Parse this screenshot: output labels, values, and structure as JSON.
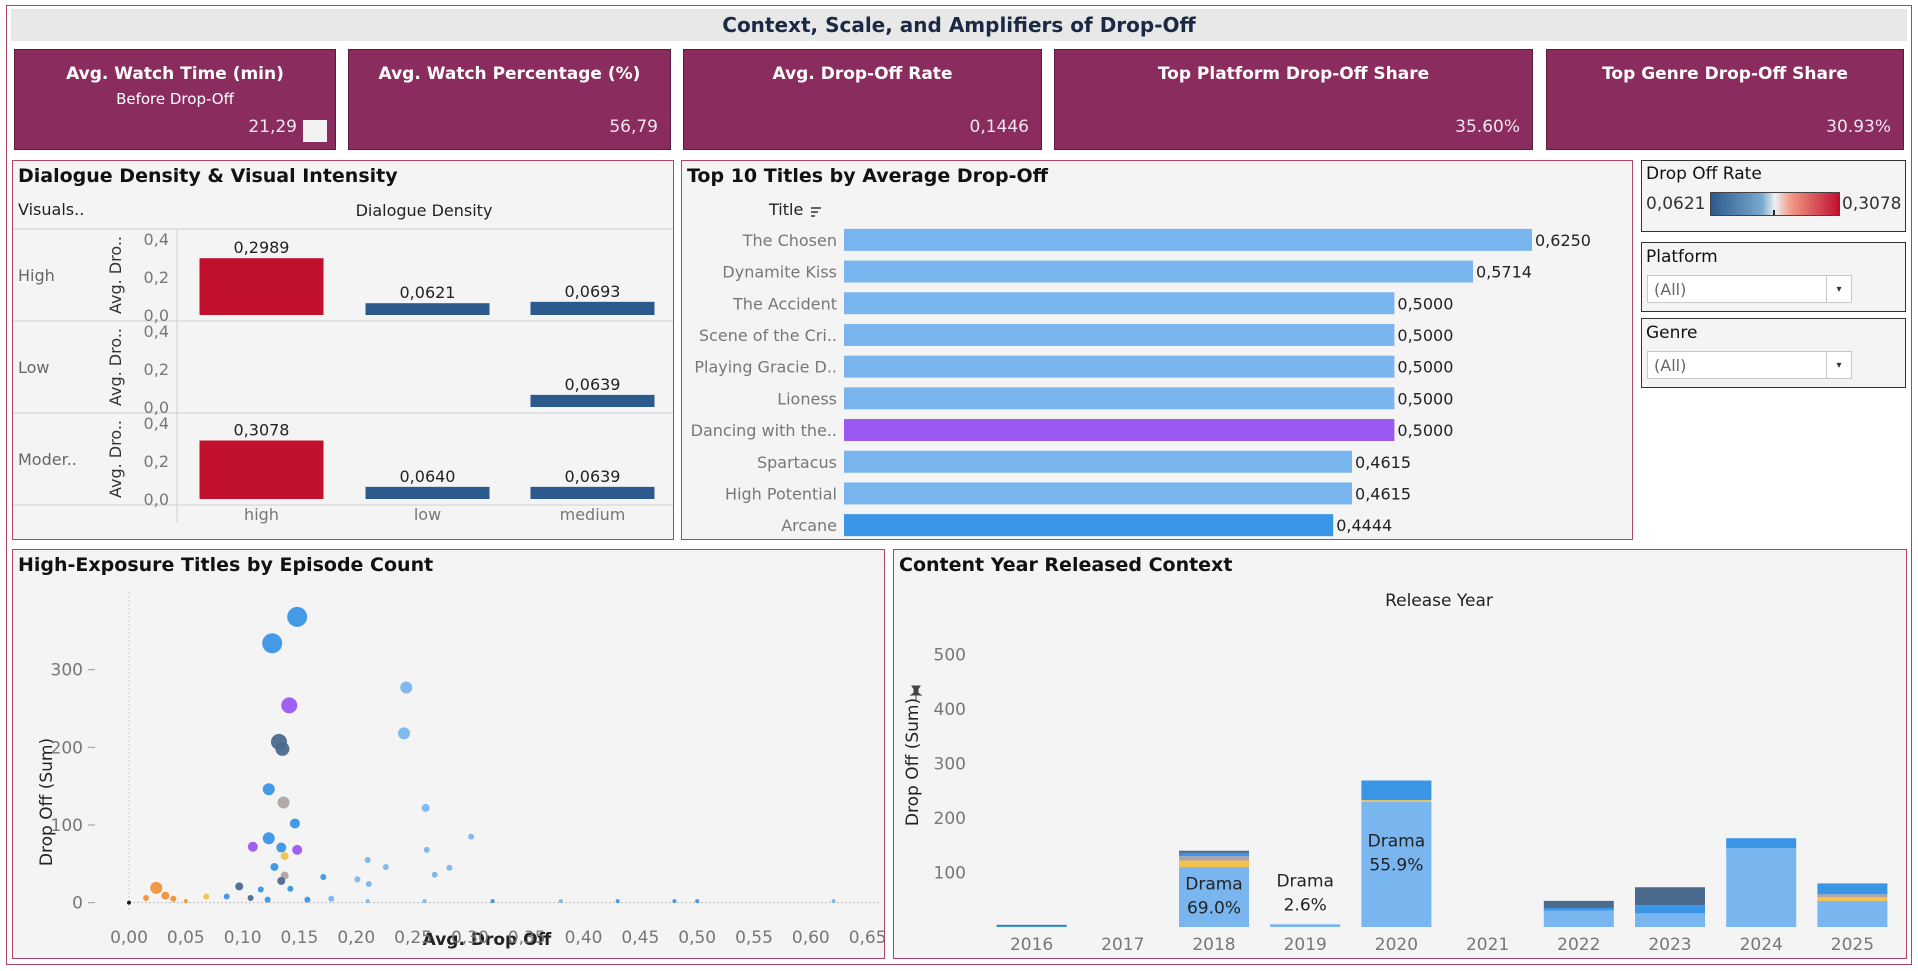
{
  "dashboard": {
    "title": "Context, Scale, and Amplifiers of Drop-Off"
  },
  "kpis": [
    {
      "title": "Avg. Watch Time (min)",
      "subtitle": "Before Drop-Off",
      "value": "21,29"
    },
    {
      "title": "Avg. Watch Percentage  (%)",
      "subtitle": "",
      "value": "56,79"
    },
    {
      "title": "Avg. Drop-Off Rate",
      "subtitle": "",
      "value": "0,1446"
    },
    {
      "title": "Top Platform Drop-Off Share",
      "subtitle": "",
      "value": "35.60%"
    },
    {
      "title": "Top Genre Drop-Off Share",
      "subtitle": "",
      "value": "30.93%"
    }
  ],
  "filters": {
    "color_legend": {
      "title": "Drop Off Rate",
      "min": "0,0621",
      "max": "0,3078",
      "color_low": "#2c5a8c",
      "color_high": "#c0102e"
    },
    "platform": {
      "label": "Platform",
      "value": "(All)"
    },
    "genre": {
      "label": "Genre",
      "value": "(All)"
    }
  },
  "colors": {
    "kpi_bg": "#8b2c5f",
    "border": "#b0436a",
    "bar_light": "#79b6f0",
    "bar_mid": "#3a95e6",
    "highlight": "#9b59f0",
    "hot": "#c0102e",
    "cold": "#2c5a8c"
  },
  "chart_data": [
    {
      "type": "bar",
      "title": "Dialogue Density & Visual Intensity",
      "row_header": "Visuals..",
      "column_header": "Dialogue Density",
      "ylabel": "Avg. Dro..",
      "ylim": [
        0,
        0.4
      ],
      "yticks": [
        "0,4",
        "0,2",
        "0,0"
      ],
      "categories": [
        "high",
        "low",
        "medium"
      ],
      "rows": [
        {
          "name": "High",
          "values": [
            0.2989,
            0.0621,
            0.0693
          ],
          "labels": [
            "0,2989",
            "0,0621",
            "0,0693"
          ]
        },
        {
          "name": "Low",
          "values": [
            null,
            null,
            0.0639
          ],
          "labels": [
            "",
            "",
            "0,0639"
          ]
        },
        {
          "name": "Moder..",
          "values": [
            0.3078,
            0.064,
            0.0639
          ],
          "labels": [
            "0,3078",
            "0,0640",
            "0,0639"
          ]
        }
      ]
    },
    {
      "type": "bar",
      "orientation": "horizontal",
      "title": "Top 10 Titles by Average Drop-Off",
      "column_header": "Title",
      "categories": [
        "The Chosen",
        "Dynamite Kiss",
        "The Accident",
        "Scene of the Cri..",
        "Playing Gracie D..",
        "Lioness",
        "Dancing with the..",
        "Spartacus",
        "High Potential",
        "Arcane"
      ],
      "values": [
        0.625,
        0.5714,
        0.5,
        0.5,
        0.5,
        0.5,
        0.5,
        0.4615,
        0.4615,
        0.4444
      ],
      "labels": [
        "0,6250",
        "0,5714",
        "0,5000",
        "0,5000",
        "0,5000",
        "0,5000",
        "0,5000",
        "0,4615",
        "0,4615",
        "0,4444"
      ],
      "colors": [
        "#79b6f0",
        "#79b6f0",
        "#79b6f0",
        "#79b6f0",
        "#79b6f0",
        "#79b6f0",
        "#9b59f0",
        "#79b6f0",
        "#79b6f0",
        "#3a95e6"
      ],
      "xlim": [
        0,
        0.7
      ]
    },
    {
      "type": "scatter",
      "title": "High-Exposure Titles by Episode Count",
      "xlabel": "Avg. Drop Off",
      "ylabel": "Drop Off (Sum)",
      "xlim": [
        0,
        0.66
      ],
      "ylim": [
        -12,
        400
      ],
      "xticks": [
        "0,00",
        "0,05",
        "0,10",
        "0,15",
        "0,20",
        "0,25",
        "0,30",
        "0,35",
        "0,40",
        "0,45",
        "0,50",
        "0,55",
        "0,60",
        "0,65"
      ],
      "yticks": [
        0,
        100,
        200,
        300
      ],
      "points": [
        {
          "x": 0.148,
          "y": 368,
          "r": 10,
          "color": "#3a95e6"
        },
        {
          "x": 0.126,
          "y": 334,
          "r": 10,
          "color": "#3a95e6"
        },
        {
          "x": 0.244,
          "y": 277,
          "r": 6,
          "color": "#79b6f0"
        },
        {
          "x": 0.141,
          "y": 254,
          "r": 8,
          "color": "#9b59f0"
        },
        {
          "x": 0.242,
          "y": 218,
          "r": 6,
          "color": "#79b6f0"
        },
        {
          "x": 0.132,
          "y": 207,
          "r": 8,
          "color": "#4a6a8e"
        },
        {
          "x": 0.135,
          "y": 198,
          "r": 7,
          "color": "#4a6a8e"
        },
        {
          "x": 0.123,
          "y": 146,
          "r": 6,
          "color": "#3a95e6"
        },
        {
          "x": 0.136,
          "y": 129,
          "r": 6,
          "color": "#b0a4a4"
        },
        {
          "x": 0.261,
          "y": 122,
          "r": 4,
          "color": "#79b6f0"
        },
        {
          "x": 0.146,
          "y": 102,
          "r": 5,
          "color": "#3a95e6"
        },
        {
          "x": 0.301,
          "y": 85,
          "r": 3,
          "color": "#79b6f0"
        },
        {
          "x": 0.123,
          "y": 83,
          "r": 6,
          "color": "#3a95e6"
        },
        {
          "x": 0.109,
          "y": 72,
          "r": 5,
          "color": "#9b59f0"
        },
        {
          "x": 0.134,
          "y": 71,
          "r": 5,
          "color": "#3a95e6"
        },
        {
          "x": 0.148,
          "y": 68,
          "r": 5,
          "color": "#9b59f0"
        },
        {
          "x": 0.262,
          "y": 68,
          "r": 3,
          "color": "#79b6f0"
        },
        {
          "x": 0.137,
          "y": 60,
          "r": 4,
          "color": "#f2c14e"
        },
        {
          "x": 0.21,
          "y": 55,
          "r": 3,
          "color": "#79b6f0"
        },
        {
          "x": 0.282,
          "y": 45,
          "r": 3,
          "color": "#79b6f0"
        },
        {
          "x": 0.128,
          "y": 46,
          "r": 4,
          "color": "#3a95e6"
        },
        {
          "x": 0.226,
          "y": 46,
          "r": 3,
          "color": "#79b6f0"
        },
        {
          "x": 0.269,
          "y": 36,
          "r": 3,
          "color": "#79b6f0"
        },
        {
          "x": 0.137,
          "y": 35,
          "r": 4,
          "color": "#b0a4a4"
        },
        {
          "x": 0.171,
          "y": 33,
          "r": 3,
          "color": "#3a95e6"
        },
        {
          "x": 0.201,
          "y": 30,
          "r": 3,
          "color": "#79b6f0"
        },
        {
          "x": 0.134,
          "y": 28,
          "r": 4,
          "color": "#4a6a8e"
        },
        {
          "x": 0.211,
          "y": 24,
          "r": 3,
          "color": "#79b6f0"
        },
        {
          "x": 0.024,
          "y": 19,
          "r": 6,
          "color": "#f0923a"
        },
        {
          "x": 0.097,
          "y": 21,
          "r": 4,
          "color": "#4a6a8e"
        },
        {
          "x": 0.116,
          "y": 17,
          "r": 3,
          "color": "#3a95e6"
        },
        {
          "x": 0.142,
          "y": 18,
          "r": 3,
          "color": "#3a95e6"
        },
        {
          "x": 0.032,
          "y": 9,
          "r": 4,
          "color": "#f0923a"
        },
        {
          "x": 0.039,
          "y": 5,
          "r": 3,
          "color": "#f0923a"
        },
        {
          "x": 0.015,
          "y": 6,
          "r": 3,
          "color": "#f0923a"
        },
        {
          "x": 0.068,
          "y": 8,
          "r": 3,
          "color": "#f2c14e"
        },
        {
          "x": 0.086,
          "y": 8,
          "r": 3,
          "color": "#3a95e6"
        },
        {
          "x": 0.107,
          "y": 6,
          "r": 3,
          "color": "#4a6a8e"
        },
        {
          "x": 0.122,
          "y": 4,
          "r": 3,
          "color": "#3a95e6"
        },
        {
          "x": 0.157,
          "y": 4,
          "r": 3,
          "color": "#3a95e6"
        },
        {
          "x": 0.178,
          "y": 5,
          "r": 3,
          "color": "#79b6f0"
        },
        {
          "x": 0.0,
          "y": 0,
          "r": 2,
          "color": "#111111"
        },
        {
          "x": 0.05,
          "y": 2,
          "r": 2,
          "color": "#f0923a"
        },
        {
          "x": 0.21,
          "y": 2,
          "r": 2,
          "color": "#79b6f0"
        },
        {
          "x": 0.26,
          "y": 2,
          "r": 2,
          "color": "#79b6f0"
        },
        {
          "x": 0.32,
          "y": 2,
          "r": 2,
          "color": "#3a95e6"
        },
        {
          "x": 0.38,
          "y": 2,
          "r": 2,
          "color": "#79b6f0"
        },
        {
          "x": 0.43,
          "y": 2,
          "r": 2,
          "color": "#3a95e6"
        },
        {
          "x": 0.48,
          "y": 2,
          "r": 2,
          "color": "#3a95e6"
        },
        {
          "x": 0.5,
          "y": 2,
          "r": 2,
          "color": "#3a95e6"
        },
        {
          "x": 0.62,
          "y": 2,
          "r": 2,
          "color": "#79b6f0"
        }
      ]
    },
    {
      "type": "bar",
      "stacked": true,
      "title": "Content Year Released Context",
      "column_header": "Release Year",
      "ylabel": "Drop Off (Sum)",
      "ylim": [
        0,
        560
      ],
      "yticks": [
        100,
        200,
        300,
        400,
        500
      ],
      "categories": [
        "2016",
        "2017",
        "2018",
        "2019",
        "2020",
        "2021",
        "2022",
        "2023",
        "2024",
        "2025"
      ],
      "series": [
        {
          "name": "Drama",
          "color": "#79b6f0",
          "values": [
            0,
            0,
            110,
            5,
            230,
            0,
            30,
            25,
            145,
            48
          ]
        },
        {
          "name": "",
          "color": "#f2c14e",
          "values": [
            0,
            0,
            12,
            0,
            3,
            0,
            0,
            0,
            0,
            7
          ]
        },
        {
          "name": "",
          "color": "#b0a4a4",
          "values": [
            0,
            0,
            8,
            0,
            0,
            0,
            0,
            0,
            0,
            5
          ]
        },
        {
          "name": "",
          "color": "#3a95e6",
          "values": [
            2,
            0,
            6,
            0,
            36,
            0,
            5,
            15,
            18,
            20
          ]
        },
        {
          "name": "",
          "color": "#4a6a8e",
          "values": [
            2,
            0,
            4,
            0,
            0,
            0,
            13,
            33,
            0,
            0
          ]
        }
      ],
      "annotations": [
        {
          "category": "2018",
          "line1": "Drama",
          "line2": "69.0%"
        },
        {
          "category": "2019",
          "line1": "Drama",
          "line2": "2.6%"
        },
        {
          "category": "2020",
          "line1": "Drama",
          "line2": "55.9%"
        }
      ]
    }
  ]
}
